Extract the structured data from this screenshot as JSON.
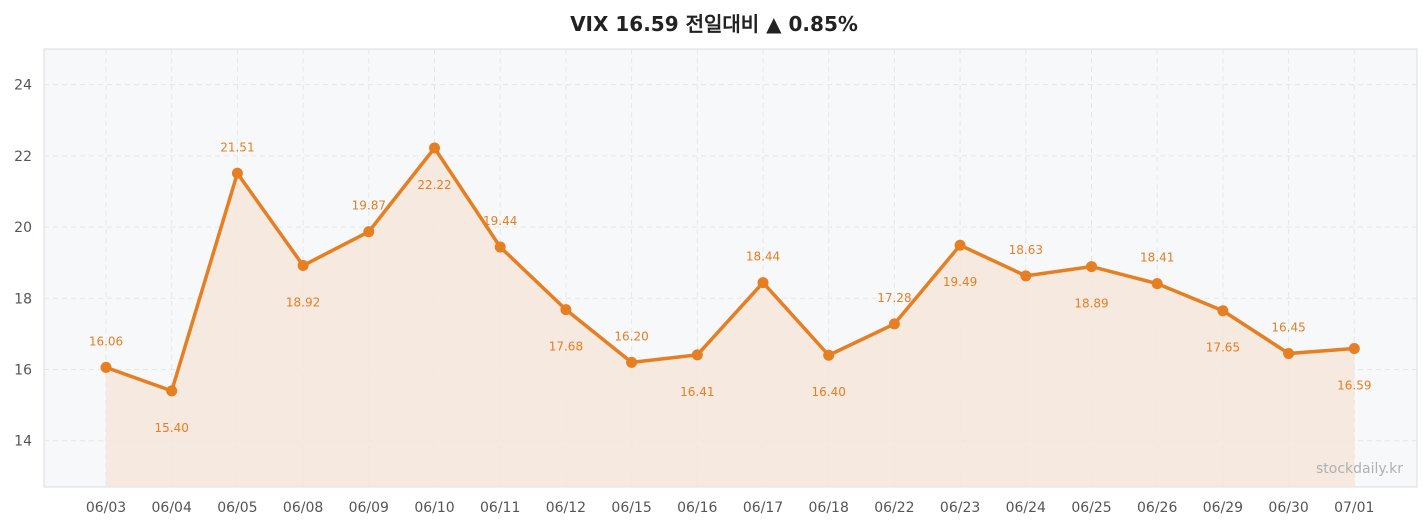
{
  "chart_data": {
    "type": "line",
    "title": "VIX  16.59  전일대비 ▲ 0.85%",
    "xlabel": "",
    "ylabel": "",
    "categories": [
      "06/03",
      "06/04",
      "06/05",
      "06/08",
      "06/09",
      "06/10",
      "06/11",
      "06/12",
      "06/15",
      "06/16",
      "06/17",
      "06/18",
      "06/22",
      "06/23",
      "06/24",
      "06/25",
      "06/26",
      "06/29",
      "06/30",
      "07/01"
    ],
    "series": [
      {
        "values": [
          16.06,
          15.4,
          21.51,
          18.92,
          19.87,
          22.22,
          19.44,
          17.68,
          16.2,
          16.41,
          18.44,
          16.4,
          17.28,
          19.49,
          18.63,
          18.89,
          18.41,
          17.65,
          16.45,
          16.59
        ],
        "labels": [
          "16.06",
          "15.40",
          "21.51",
          "18.92",
          "19.87",
          "22.22",
          "19.44",
          "17.68",
          "16.20",
          "16.41",
          "18.44",
          "16.40",
          "17.28",
          "19.49",
          "18.63",
          "18.89",
          "18.41",
          "17.65",
          "16.45",
          "16.59"
        ]
      }
    ],
    "label_positions": [
      "above",
      "below",
      "above",
      "below",
      "above",
      "below",
      "above",
      "below",
      "above",
      "below",
      "above",
      "below",
      "above",
      "below",
      "above",
      "below",
      "above",
      "below",
      "above",
      "below"
    ],
    "ylim": [
      12.7,
      25
    ],
    "yticks": [
      "14",
      "16",
      "18",
      "20",
      "22",
      "24"
    ],
    "grid": true,
    "colors": {
      "line": "#e67e22",
      "fill": "#f5e7dc",
      "plot_background": "#f7f8fa",
      "grid": "#e6e6e6",
      "frame": "#dddddd"
    },
    "watermark": "stockdaily.kr"
  }
}
